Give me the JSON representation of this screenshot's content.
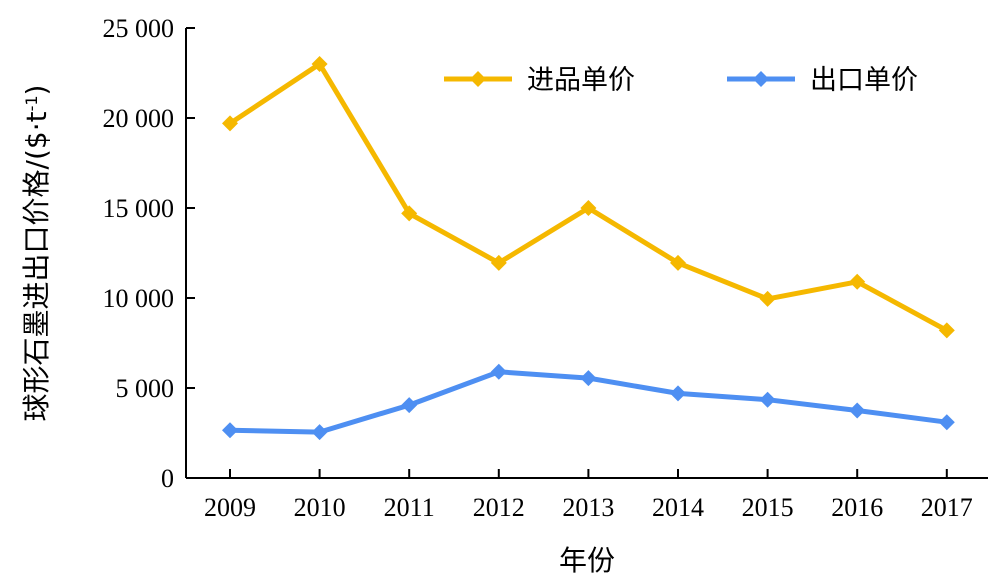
{
  "chart_data": {
    "type": "line",
    "title": "",
    "xlabel": "年份",
    "ylabel": {
      "main": "球形石墨进出口价格/($·t",
      "sup": "-1",
      "close": ")"
    },
    "categories": [
      "2009",
      "2010",
      "2011",
      "2012",
      "2013",
      "2014",
      "2015",
      "2016",
      "2017"
    ],
    "y_ticks": [
      "0",
      "5 000",
      "10 000",
      "15 000",
      "20 000",
      "25 000"
    ],
    "ylim": [
      0,
      25000
    ],
    "grid": false,
    "legend_position": "top-right",
    "series": [
      {
        "name": "进品单价",
        "color": "#F5B800",
        "values": [
          19700,
          23000,
          14700,
          11950,
          15000,
          11950,
          9950,
          10900,
          8200
        ]
      },
      {
        "name": "出口单价",
        "color": "#4E8FF2",
        "values": [
          2650,
          2550,
          4050,
          5900,
          5550,
          4700,
          4350,
          3750,
          3100
        ]
      }
    ]
  }
}
